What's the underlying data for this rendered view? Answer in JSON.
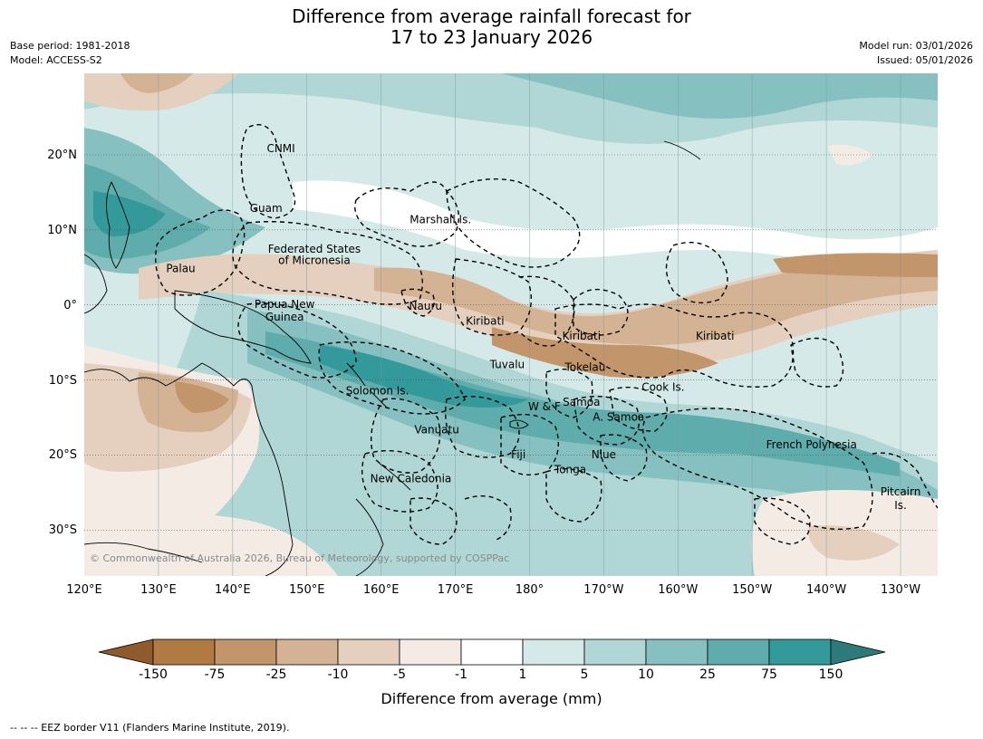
{
  "title_line1": "Difference from average rainfall forecast for",
  "title_line2": "17 to 23 January 2026",
  "base_period": "Base period: 1981-2018",
  "model": "Model: ACCESS-S2",
  "model_run": "Model run: 03/01/2026",
  "issued": "Issued: 05/01/2026",
  "map": {
    "lon_range": [
      120,
      235
    ],
    "lat_range": [
      -36,
      31
    ],
    "lat_labels": [
      "20°N",
      "10°N",
      "0°",
      "10°S",
      "20°S",
      "30°S"
    ],
    "lon_labels": [
      "120°E",
      "130°E",
      "140°E",
      "150°E",
      "160°E",
      "170°E",
      "180°",
      "170°W",
      "160°W",
      "150°W",
      "140°W",
      "130°W"
    ],
    "regions": [
      {
        "name": "CNMI",
        "lon": 146.5,
        "lat": 21
      },
      {
        "name": "Guam",
        "lon": 144.5,
        "lat": 13
      },
      {
        "name": "Marshall Is.",
        "lon": 168,
        "lat": 11.5
      },
      {
        "name": "Federated States",
        "lon": 151,
        "lat": 7.6
      },
      {
        "name": "of Micronesia",
        "lon": 151,
        "lat": 6.1
      },
      {
        "name": "Palau",
        "lon": 133,
        "lat": 5
      },
      {
        "name": "Papua New",
        "lon": 147,
        "lat": 0.2
      },
      {
        "name": "Guinea",
        "lon": 147,
        "lat": -1.5
      },
      {
        "name": "Nauru",
        "lon": 166,
        "lat": 0
      },
      {
        "name": "Kiribati",
        "lon": 174,
        "lat": -2
      },
      {
        "name": "Kiribati",
        "lon": 187,
        "lat": -4
      },
      {
        "name": "Kiribati",
        "lon": 205,
        "lat": -4
      },
      {
        "name": "Tuvalu",
        "lon": 177,
        "lat": -7.8
      },
      {
        "name": "Tokelau",
        "lon": 187.5,
        "lat": -8.2
      },
      {
        "name": "Cook Is.",
        "lon": 198,
        "lat": -10.8
      },
      {
        "name": "Solomon Is.",
        "lon": 159.5,
        "lat": -11.3
      },
      {
        "name": "Samoa",
        "lon": 187,
        "lat": -12.8
      },
      {
        "name": "W & F",
        "lon": 182,
        "lat": -13.4
      },
      {
        "name": "A. Samoa",
        "lon": 192,
        "lat": -14.8
      },
      {
        "name": "Vanuatu",
        "lon": 167.5,
        "lat": -16.5
      },
      {
        "name": "French Polynesia",
        "lon": 218,
        "lat": -18.5
      },
      {
        "name": "Niue",
        "lon": 190,
        "lat": -19.8
      },
      {
        "name": "Fiji",
        "lon": 178.5,
        "lat": -19.8
      },
      {
        "name": "Tonga",
        "lon": 185.5,
        "lat": -21.8
      },
      {
        "name": "New Caledonia",
        "lon": 164,
        "lat": -23
      },
      {
        "name": "Pitcairn",
        "lon": 230,
        "lat": -24.8
      },
      {
        "name": "Is.",
        "lon": 230,
        "lat": -26.6
      }
    ]
  },
  "copyright": "© Commonwealth of Australia 2026, Bureau of Meteorology, supported by COSPPac",
  "colorbar": {
    "title": "Difference from average (mm)",
    "ticks": [
      "-150",
      "-75",
      "-25",
      "-10",
      "-5",
      "-1",
      "1",
      "5",
      "10",
      "25",
      "75",
      "150"
    ],
    "colors": [
      "#b07a43",
      "#c2956b",
      "#d4b394",
      "#e5d0bf",
      "#f4ebe5",
      "#ffffff",
      "#d5eae8",
      "#b0d6d5",
      "#86c0c0",
      "#5eacac",
      "#34999a"
    ],
    "under_color": "#8f5b2d",
    "over_color": "#2e7a7a"
  },
  "footnote": "--  --  -- EEZ border V11 (Flanders Marine Institute, 2019)."
}
